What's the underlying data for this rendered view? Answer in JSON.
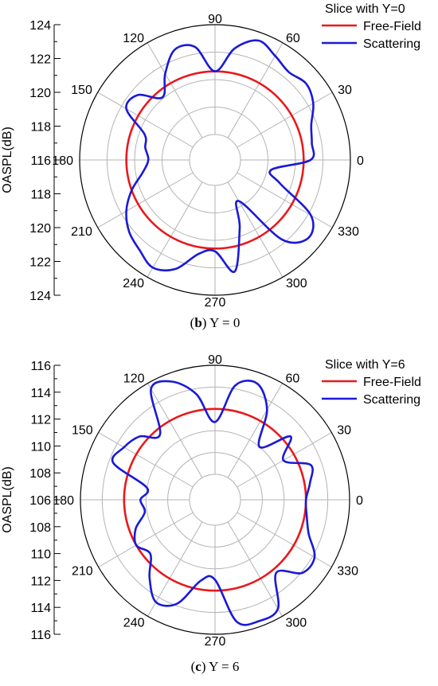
{
  "chart_data": [
    {
      "type": "polar-line",
      "caption_letter": "b",
      "caption_rest": " Y = 0",
      "ylabel": "OASPL(dB)",
      "legend_title": "Slice with Y=0",
      "legend_placement": "top-right",
      "rlim": [
        116,
        124
      ],
      "r_ticks": [
        116,
        118,
        120,
        122,
        124
      ],
      "angle_ticks": [
        "0",
        "30",
        "60",
        "90",
        "120",
        "150",
        "180",
        "210",
        "240",
        "270",
        "300",
        "330"
      ],
      "series": [
        {
          "name": "Free-Field",
          "color": "#e8191c",
          "constant": 120.6
        },
        {
          "name": "Scattering",
          "color": "#1a1ad6",
          "theta": [
            0,
            10,
            20,
            30,
            40,
            50,
            60,
            70,
            80,
            90,
            100,
            110,
            120,
            130,
            140,
            150,
            160,
            170,
            180,
            190,
            200,
            210,
            220,
            230,
            240,
            250,
            260,
            270,
            280,
            290,
            300,
            310,
            320,
            330,
            340,
            350
          ],
          "values": [
            121.1,
            121.3,
            121.6,
            122.4,
            122.8,
            122.5,
            122.9,
            123.4,
            122.4,
            120.6,
            122.5,
            122.7,
            121.4,
            120.1,
            121.5,
            121.6,
            119.6,
            119.3,
            119.0,
            119.5,
            120.6,
            121.6,
            122.3,
            122.7,
            123.2,
            122.6,
            121.1,
            120.8,
            122.4,
            119.4,
            117.6,
            121.7,
            123.0,
            122.2,
            119.2,
            118.3
          ]
        }
      ]
    },
    {
      "type": "polar-line",
      "caption_letter": "c",
      "caption_rest": " Y = 6",
      "ylabel": "OASPL(dB)",
      "legend_title": "Slice with Y=6",
      "legend_placement": "top-right",
      "rlim": [
        106,
        116
      ],
      "r_ticks": [
        106,
        108,
        110,
        112,
        114,
        116
      ],
      "angle_ticks": [
        "0",
        "30",
        "60",
        "90",
        "120",
        "150",
        "180",
        "210",
        "240",
        "270",
        "300",
        "330"
      ],
      "series": [
        {
          "name": "Free-Field",
          "color": "#e8191c",
          "constant": 112.0
        },
        {
          "name": "Scattering",
          "color": "#1a1ad6",
          "theta": [
            0,
            10,
            20,
            30,
            40,
            50,
            60,
            70,
            80,
            90,
            100,
            110,
            120,
            130,
            140,
            150,
            160,
            170,
            180,
            190,
            200,
            210,
            220,
            230,
            240,
            250,
            260,
            270,
            280,
            290,
            300,
            310,
            320,
            330,
            340,
            350
          ],
          "values": [
            112.0,
            112.5,
            113.0,
            110.9,
            112.7,
            110.0,
            113.2,
            115.0,
            114.3,
            110.8,
            113.5,
            115.2,
            115.4,
            111.5,
            112.7,
            113.3,
            113.6,
            110.0,
            110.5,
            110.2,
            111.4,
            112.0,
            111.4,
            113.0,
            114.5,
            113.8,
            111.2,
            111.0,
            115.0,
            115.5,
            115.2,
            112.4,
            114.1,
            114.2,
            112.8,
            112.2
          ]
        }
      ]
    }
  ]
}
